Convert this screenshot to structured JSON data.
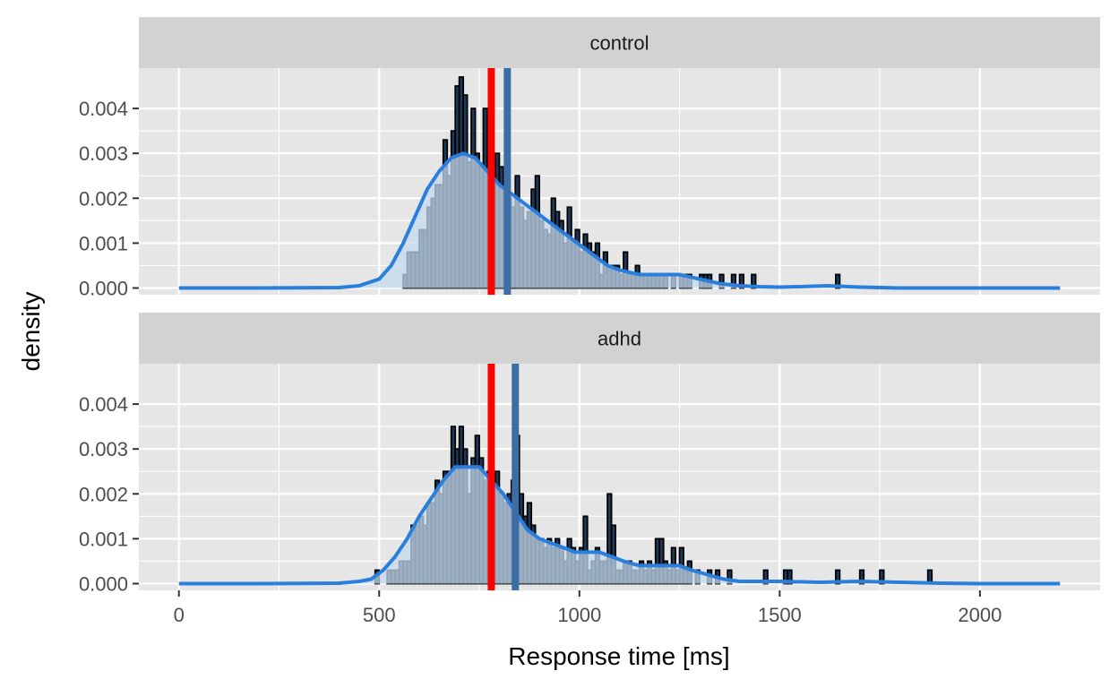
{
  "chart_data": {
    "type": "histogram-density-facets",
    "xlabel": "Response time [ms]",
    "ylabel": "density",
    "xlim": [
      -100,
      2300
    ],
    "ylim": [
      -0.00015,
      0.0049
    ],
    "x_ticks": [
      0,
      500,
      1000,
      1500,
      2000
    ],
    "x_tick_labels": [
      "0",
      "500",
      "1000",
      "1500",
      "2000"
    ],
    "y_ticks": [
      0,
      0.001,
      0.002,
      0.003,
      0.004
    ],
    "y_tick_labels": [
      "0.000",
      "0.001",
      "0.002",
      "0.003",
      "0.004"
    ],
    "grid": true,
    "bin_width": 10,
    "colors": {
      "bars": "#1e3a5a",
      "density": "#2a7fdc",
      "line_red": "#ff0000",
      "line_blue": "#3b6ea5"
    },
    "facets": [
      {
        "label": "control",
        "vline_red": 780,
        "vline_blue": 820,
        "histogram": [
          [
            560,
            0.0003
          ],
          [
            570,
            0.0008
          ],
          [
            580,
            0.0008
          ],
          [
            590,
            0.0008
          ],
          [
            600,
            0.0013
          ],
          [
            610,
            0.0013
          ],
          [
            620,
            0.0018
          ],
          [
            630,
            0.002
          ],
          [
            640,
            0.0023
          ],
          [
            650,
            0.0023
          ],
          [
            660,
            0.0033
          ],
          [
            670,
            0.0025
          ],
          [
            680,
            0.0035
          ],
          [
            690,
            0.0045
          ],
          [
            700,
            0.0047
          ],
          [
            710,
            0.0043
          ],
          [
            720,
            0.0028
          ],
          [
            730,
            0.004
          ],
          [
            740,
            0.003
          ],
          [
            750,
            0.0027
          ],
          [
            760,
            0.004
          ],
          [
            770,
            0.003
          ],
          [
            780,
            0.0025
          ],
          [
            790,
            0.003
          ],
          [
            800,
            0.0027
          ],
          [
            810,
            0.0022
          ],
          [
            820,
            0.002
          ],
          [
            830,
            0.0018
          ],
          [
            840,
            0.0025
          ],
          [
            850,
            0.0018
          ],
          [
            860,
            0.0015
          ],
          [
            870,
            0.0017
          ],
          [
            880,
            0.0022
          ],
          [
            890,
            0.0025
          ],
          [
            900,
            0.0015
          ],
          [
            910,
            0.0013
          ],
          [
            920,
            0.0012
          ],
          [
            930,
            0.002
          ],
          [
            940,
            0.0017
          ],
          [
            950,
            0.0015
          ],
          [
            960,
            0.001
          ],
          [
            970,
            0.0018
          ],
          [
            980,
            0.001
          ],
          [
            990,
            0.0013
          ],
          [
            1000,
            0.0008
          ],
          [
            1010,
            0.0012
          ],
          [
            1020,
            0.001
          ],
          [
            1030,
            0.0008
          ],
          [
            1040,
            0.001
          ],
          [
            1050,
            0.0003
          ],
          [
            1060,
            0.0008
          ],
          [
            1070,
            0.0005
          ],
          [
            1080,
            0.0005
          ],
          [
            1090,
            0.0005
          ],
          [
            1100,
            0.0003
          ],
          [
            1110,
            0.0008
          ],
          [
            1120,
            0.0003
          ],
          [
            1130,
            0.0003
          ],
          [
            1140,
            0.0005
          ],
          [
            1150,
            0.0003
          ],
          [
            1160,
            0.0003
          ],
          [
            1170,
            0.0003
          ],
          [
            1180,
            0.0003
          ],
          [
            1190,
            0.0003
          ],
          [
            1200,
            0.0003
          ],
          [
            1210,
            0.0003
          ],
          [
            1230,
            0.0003
          ],
          [
            1250,
            0.0003
          ],
          [
            1260,
            0.0003
          ],
          [
            1270,
            0.0003
          ],
          [
            1300,
            0.0003
          ],
          [
            1310,
            0.0003
          ],
          [
            1320,
            0.0003
          ],
          [
            1350,
            0.0003
          ],
          [
            1380,
            0.0003
          ],
          [
            1400,
            0.0003
          ],
          [
            1430,
            0.0003
          ],
          [
            1640,
            0.0003
          ]
        ],
        "density": [
          [
            0,
            0
          ],
          [
            200,
            0
          ],
          [
            400,
            1e-05
          ],
          [
            450,
            5e-05
          ],
          [
            500,
            0.0002
          ],
          [
            530,
            0.0005
          ],
          [
            560,
            0.001
          ],
          [
            590,
            0.0016
          ],
          [
            620,
            0.0022
          ],
          [
            650,
            0.0026
          ],
          [
            680,
            0.0029
          ],
          [
            710,
            0.003
          ],
          [
            740,
            0.0029
          ],
          [
            770,
            0.0026
          ],
          [
            800,
            0.0023
          ],
          [
            830,
            0.0021
          ],
          [
            860,
            0.0019
          ],
          [
            890,
            0.0017
          ],
          [
            920,
            0.0015
          ],
          [
            950,
            0.0013
          ],
          [
            980,
            0.0011
          ],
          [
            1010,
            0.0009
          ],
          [
            1040,
            0.0007
          ],
          [
            1070,
            0.0005
          ],
          [
            1100,
            0.0004
          ],
          [
            1150,
            0.0003
          ],
          [
            1200,
            0.0003
          ],
          [
            1250,
            0.0003
          ],
          [
            1300,
            0.0002
          ],
          [
            1350,
            0.0001
          ],
          [
            1400,
            5e-05
          ],
          [
            1450,
            3e-05
          ],
          [
            1500,
            2e-05
          ],
          [
            1550,
            3e-05
          ],
          [
            1620,
            5e-05
          ],
          [
            1700,
            2e-05
          ],
          [
            1800,
            0
          ],
          [
            2000,
            0
          ],
          [
            2200,
            0
          ]
        ]
      },
      {
        "label": "adhd",
        "vline_red": 780,
        "vline_blue": 840,
        "histogram": [
          [
            490,
            0.0003
          ],
          [
            500,
            0
          ],
          [
            510,
            0
          ],
          [
            520,
            0.0003
          ],
          [
            530,
            0.0003
          ],
          [
            540,
            0.0003
          ],
          [
            550,
            0.0005
          ],
          [
            560,
            0.0005
          ],
          [
            570,
            0.0005
          ],
          [
            580,
            0.0013
          ],
          [
            590,
            0.0013
          ],
          [
            600,
            0.0015
          ],
          [
            610,
            0.0013
          ],
          [
            620,
            0.0018
          ],
          [
            630,
            0.0018
          ],
          [
            640,
            0.0023
          ],
          [
            650,
            0.002
          ],
          [
            660,
            0.0025
          ],
          [
            670,
            0.0025
          ],
          [
            680,
            0.0035
          ],
          [
            690,
            0.003
          ],
          [
            700,
            0.0035
          ],
          [
            710,
            0.003
          ],
          [
            720,
            0.002
          ],
          [
            730,
            0.0028
          ],
          [
            740,
            0.0033
          ],
          [
            750,
            0.0028
          ],
          [
            760,
            0.0023
          ],
          [
            770,
            0.0025
          ],
          [
            780,
            0.002
          ],
          [
            790,
            0.0025
          ],
          [
            800,
            0.002
          ],
          [
            810,
            0.0018
          ],
          [
            820,
            0.002
          ],
          [
            830,
            0.0023
          ],
          [
            840,
            0.0033
          ],
          [
            850,
            0.002
          ],
          [
            860,
            0.0015
          ],
          [
            870,
            0.0018
          ],
          [
            880,
            0.0013
          ],
          [
            890,
            0.001
          ],
          [
            900,
            0.001
          ],
          [
            910,
            0.0008
          ],
          [
            920,
            0.001
          ],
          [
            930,
            0.0008
          ],
          [
            940,
            0.001
          ],
          [
            950,
            0.0008
          ],
          [
            960,
            0.0005
          ],
          [
            970,
            0.001
          ],
          [
            980,
            0.0008
          ],
          [
            990,
            0.0005
          ],
          [
            1000,
            0.0008
          ],
          [
            1010,
            0.0015
          ],
          [
            1020,
            0.0003
          ],
          [
            1030,
            0.0005
          ],
          [
            1040,
            0.0008
          ],
          [
            1050,
            0.0005
          ],
          [
            1060,
            0.0005
          ],
          [
            1070,
            0.002
          ],
          [
            1080,
            0.0013
          ],
          [
            1090,
            0.0003
          ],
          [
            1100,
            0.0003
          ],
          [
            1110,
            0.0005
          ],
          [
            1120,
            0.0005
          ],
          [
            1130,
            0.0003
          ],
          [
            1140,
            0.0003
          ],
          [
            1150,
            0.0005
          ],
          [
            1160,
            0.0003
          ],
          [
            1170,
            0.0005
          ],
          [
            1180,
            0.0003
          ],
          [
            1190,
            0.001
          ],
          [
            1200,
            0.001
          ],
          [
            1210,
            0.0005
          ],
          [
            1220,
            0.0003
          ],
          [
            1230,
            0.0008
          ],
          [
            1240,
            0.0003
          ],
          [
            1250,
            0.0008
          ],
          [
            1260,
            0.0003
          ],
          [
            1270,
            0.0005
          ],
          [
            1290,
            0.0003
          ],
          [
            1320,
            0.0003
          ],
          [
            1340,
            0.0003
          ],
          [
            1370,
            0.0003
          ],
          [
            1460,
            0.0003
          ],
          [
            1510,
            0.0003
          ],
          [
            1520,
            0.0003
          ],
          [
            1640,
            0.0003
          ],
          [
            1700,
            0.0003
          ],
          [
            1750,
            0.0003
          ],
          [
            1870,
            0.0003
          ]
        ],
        "density": [
          [
            0,
            0
          ],
          [
            200,
            0
          ],
          [
            400,
            1e-05
          ],
          [
            450,
            5e-05
          ],
          [
            480,
            0.0001
          ],
          [
            510,
            0.0003
          ],
          [
            540,
            0.0006
          ],
          [
            570,
            0.001
          ],
          [
            600,
            0.0015
          ],
          [
            630,
            0.0019
          ],
          [
            660,
            0.0023
          ],
          [
            690,
            0.0026
          ],
          [
            720,
            0.0026
          ],
          [
            750,
            0.0026
          ],
          [
            780,
            0.0023
          ],
          [
            810,
            0.002
          ],
          [
            840,
            0.0016
          ],
          [
            870,
            0.0012
          ],
          [
            900,
            0.001
          ],
          [
            930,
            0.0009
          ],
          [
            960,
            0.0008
          ],
          [
            990,
            0.0007
          ],
          [
            1020,
            0.0007
          ],
          [
            1050,
            0.0007
          ],
          [
            1080,
            0.0006
          ],
          [
            1110,
            0.0005
          ],
          [
            1150,
            0.0004
          ],
          [
            1200,
            0.0004
          ],
          [
            1250,
            0.0004
          ],
          [
            1280,
            0.0003
          ],
          [
            1320,
            0.0002
          ],
          [
            1360,
            0.0001
          ],
          [
            1400,
            5e-05
          ],
          [
            1500,
            5e-05
          ],
          [
            1600,
            3e-05
          ],
          [
            1700,
            5e-05
          ],
          [
            1800,
            3e-05
          ],
          [
            1900,
            1e-05
          ],
          [
            2000,
            0
          ],
          [
            2200,
            0
          ]
        ]
      }
    ]
  }
}
